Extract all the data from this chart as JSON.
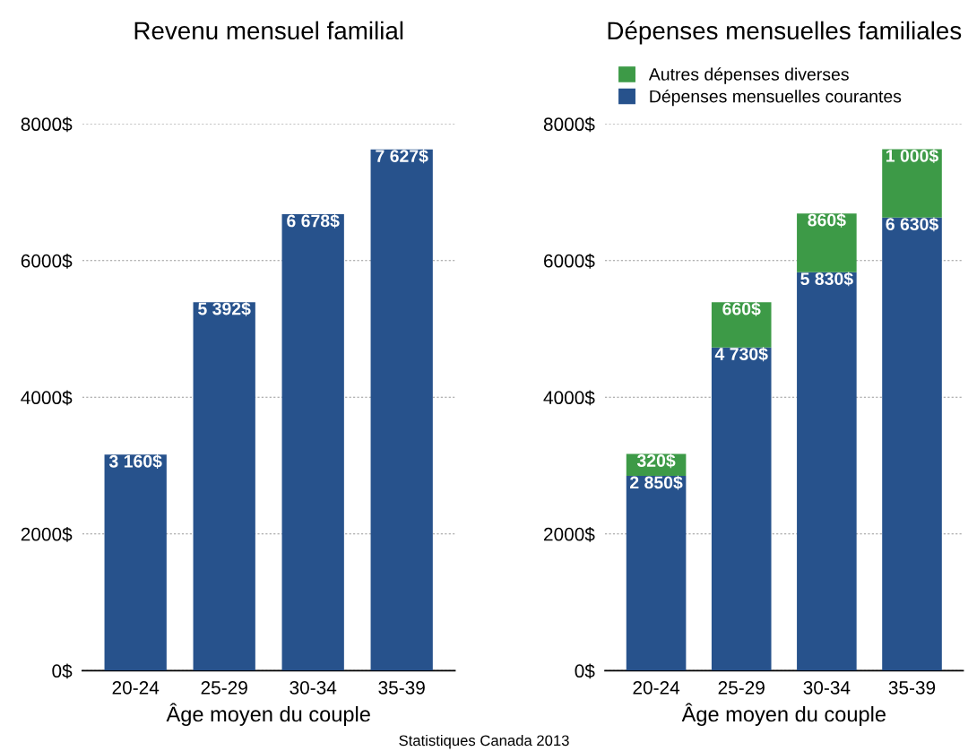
{
  "chart_data": [
    {
      "type": "bar",
      "title": "Revenu mensuel familial",
      "xlabel": "Âge moyen du couple",
      "categories": [
        "20-24",
        "25-29",
        "30-34",
        "35-39"
      ],
      "series": [
        {
          "color": "#27528c",
          "values": [
            3160,
            5392,
            6678,
            7627
          ],
          "value_labels": [
            "3 160$",
            "5 392$",
            "6 678$",
            "7 627$"
          ]
        }
      ],
      "ylim": [
        0,
        8000
      ],
      "yticks": [
        {
          "value": 0,
          "label": "0$"
        },
        {
          "value": 2000,
          "label": "2000$"
        },
        {
          "value": 4000,
          "label": "4000$"
        },
        {
          "value": 6000,
          "label": "6000$"
        },
        {
          "value": 8000,
          "label": "8000$"
        }
      ],
      "grid": "y"
    },
    {
      "type": "bar",
      "title": "Dépenses mensuelles familiales",
      "xlabel": "Âge moyen du couple",
      "stacked": true,
      "categories": [
        "20-24",
        "25-29",
        "30-34",
        "35-39"
      ],
      "series": [
        {
          "name": "Dépenses mensuelles courantes",
          "color": "#27528c",
          "values": [
            2850,
            4730,
            5830,
            6630
          ],
          "value_labels": [
            "2 850$",
            "4 730$",
            "5 830$",
            "6 630$"
          ]
        },
        {
          "name": "Autres dépenses diverses",
          "color": "#3d9a47",
          "values": [
            320,
            660,
            860,
            1000
          ],
          "value_labels": [
            "320$",
            "660$",
            "860$",
            "1 000$"
          ]
        }
      ],
      "ylim": [
        0,
        8000
      ],
      "yticks": [
        {
          "value": 0,
          "label": "0$"
        },
        {
          "value": 2000,
          "label": "2000$"
        },
        {
          "value": 4000,
          "label": "4000$"
        },
        {
          "value": 6000,
          "label": "6000$"
        },
        {
          "value": 8000,
          "label": "8000$"
        }
      ],
      "grid": "y",
      "legend": "top left",
      "annotations": [
        "Statistiques Canada 2013"
      ]
    }
  ]
}
